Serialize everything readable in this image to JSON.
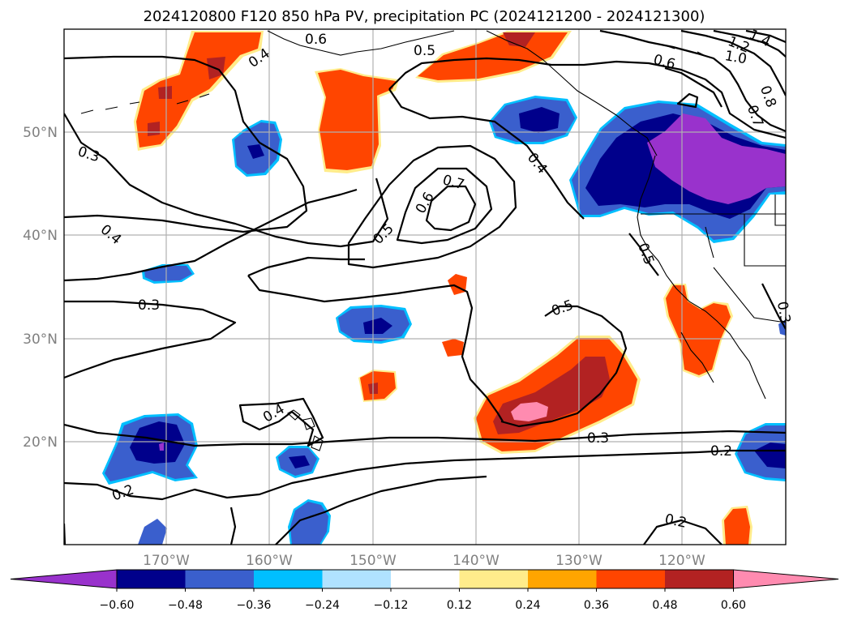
{
  "title": "2024120800 F120 850 hPa PV, precipitation PC (2024121200 - 2024121300)",
  "lon_labels": [
    "170°W",
    "160°W",
    "150°W",
    "140°W",
    "130°W",
    "120°W"
  ],
  "lat_labels": [
    "50°N",
    "40°N",
    "30°N",
    "20°N"
  ],
  "colorbar": {
    "colors": [
      "#9932cc",
      "#00008b",
      "#3a5fcd",
      "#00bfff",
      "#b0e2ff",
      "#ffffff",
      "#ffec8b",
      "#ffa500",
      "#ff4500",
      "#b22222",
      "#ff8bb0"
    ],
    "tick_labels": [
      "−0.60",
      "−0.48",
      "−0.36",
      "−0.24",
      "−0.12",
      "0.12",
      "0.24",
      "0.36",
      "0.48",
      "0.60"
    ],
    "boundaries": [
      -0.6,
      -0.48,
      -0.36,
      -0.24,
      -0.12,
      0.12,
      0.24,
      0.36,
      0.48,
      0.6
    ]
  },
  "contour_labels": [
    "0.6",
    "0.5",
    "1.4",
    "1.2",
    "1.0",
    "0.6",
    "0.4",
    "0.8",
    "0.7",
    "0.3",
    "0.4",
    "0.4",
    "0.7",
    "0.6",
    "0.5",
    "0.5",
    "0.3",
    "0.3",
    "0.5",
    "0.4",
    "0.3",
    "0.2",
    "0.2",
    "0.2"
  ]
}
